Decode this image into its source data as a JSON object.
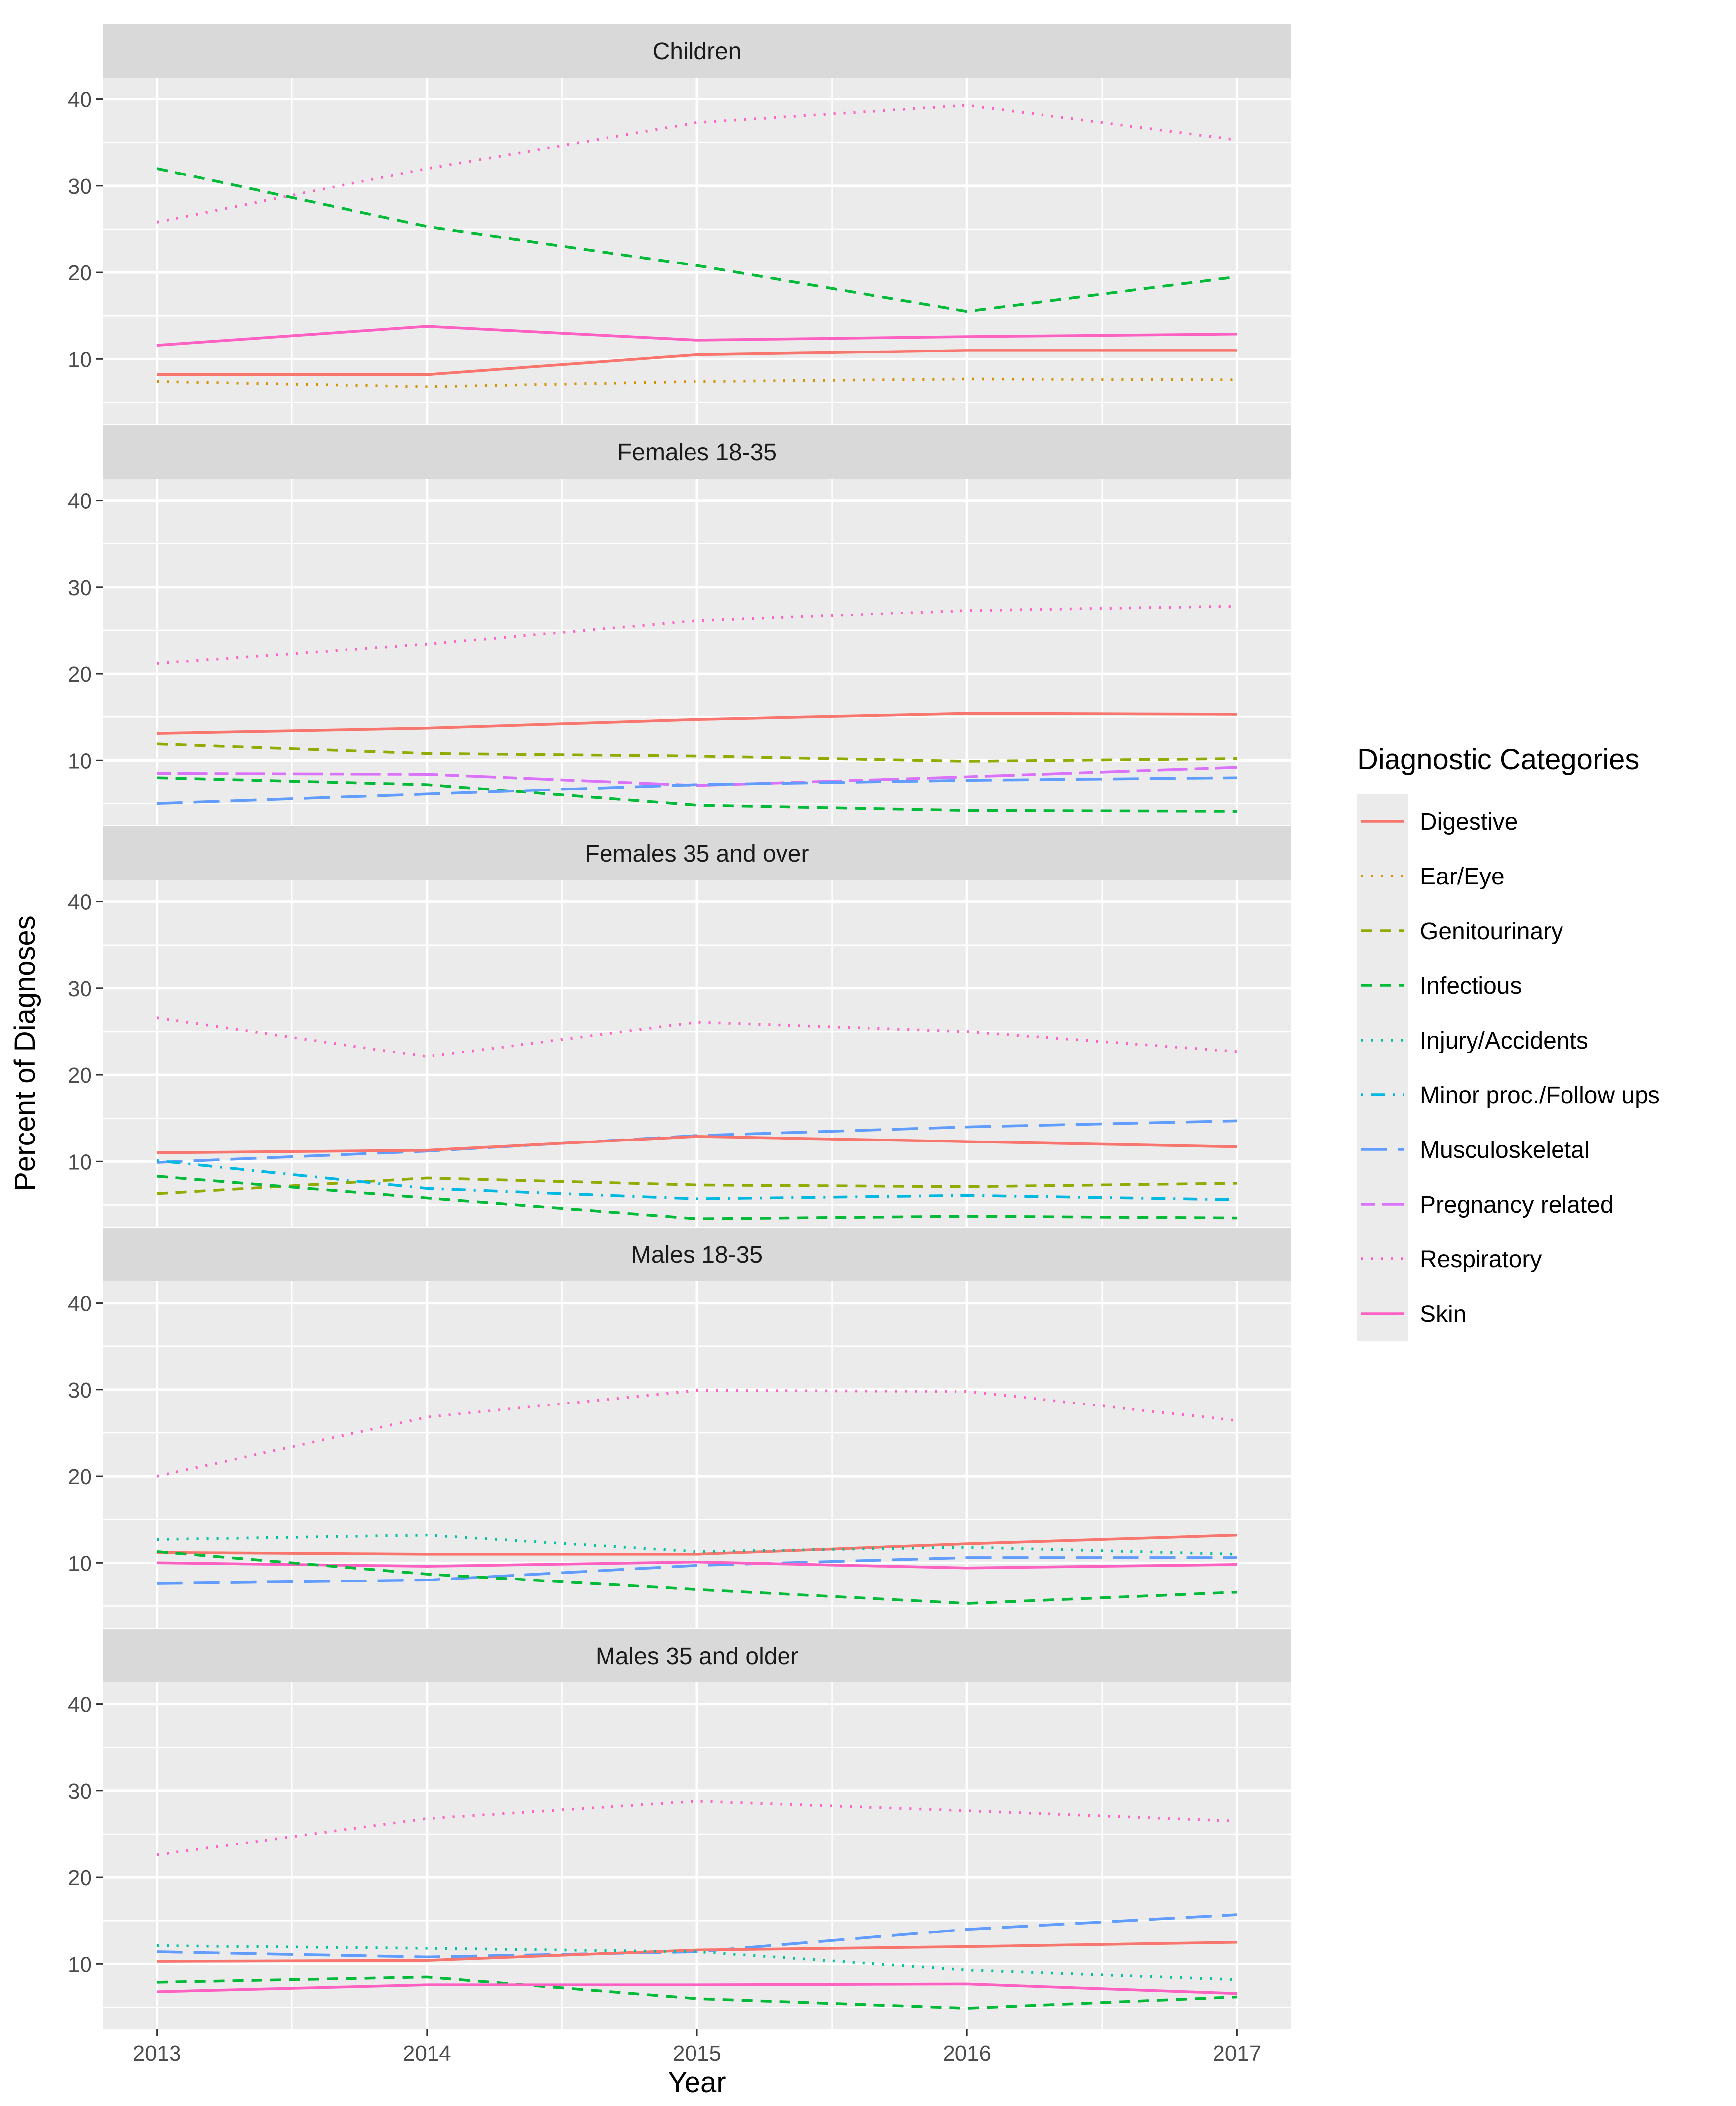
{
  "chart_data": {
    "type": "line",
    "xlabel": "Year",
    "ylabel": "Percent of Diagnoses",
    "x": [
      2013,
      2014,
      2015,
      2016,
      2017
    ],
    "ylim": [
      2.5,
      42.5
    ],
    "y_ticks": [
      10,
      20,
      30,
      40
    ],
    "grid": true,
    "legend": {
      "title": "Diagnostic Categories",
      "position": "right",
      "entries": [
        {
          "name": "Digestive",
          "color": "#F8766D",
          "dash": "solid"
        },
        {
          "name": "Ear/Eye",
          "color": "#D39200",
          "dash": "dotted"
        },
        {
          "name": "Genitourinary",
          "color": "#93AA00",
          "dash": "dashed"
        },
        {
          "name": "Infectious",
          "color": "#00BA38",
          "dash": "dashed"
        },
        {
          "name": "Injury/Accidents",
          "color": "#00C19F",
          "dash": "dotted"
        },
        {
          "name": "Minor proc./Follow ups",
          "color": "#00B9E3",
          "dash": "dotdash"
        },
        {
          "name": "Musculoskeletal",
          "color": "#619CFF",
          "dash": "longdash"
        },
        {
          "name": "Pregnancy related",
          "color": "#DB72FB",
          "dash": "twodash"
        },
        {
          "name": "Respiratory",
          "color": "#FF61C3",
          "dash": "dotted"
        },
        {
          "name": "Skin",
          "color": "#FF61C3",
          "dash": "solid"
        }
      ]
    },
    "panels": [
      {
        "title": "Children",
        "series": [
          {
            "name": "Respiratory",
            "values": [
              25.8,
              32.0,
              37.3,
              39.3,
              35.3
            ]
          },
          {
            "name": "Infectious",
            "values": [
              32.0,
              25.3,
              20.8,
              15.5,
              19.5
            ]
          },
          {
            "name": "Skin",
            "values": [
              11.6,
              13.8,
              12.2,
              12.6,
              12.9
            ]
          },
          {
            "name": "Digestive",
            "values": [
              8.2,
              8.2,
              10.5,
              11.0,
              11.0
            ]
          },
          {
            "name": "Ear/Eye",
            "values": [
              7.4,
              6.8,
              7.4,
              7.7,
              7.6
            ]
          }
        ]
      },
      {
        "title": "Females 18-35",
        "series": [
          {
            "name": "Respiratory",
            "values": [
              21.2,
              23.4,
              26.1,
              27.3,
              27.8
            ]
          },
          {
            "name": "Digestive",
            "values": [
              13.1,
              13.7,
              14.7,
              15.4,
              15.3
            ]
          },
          {
            "name": "Genitourinary",
            "values": [
              11.9,
              10.8,
              10.5,
              9.9,
              10.2
            ]
          },
          {
            "name": "Pregnancy related",
            "values": [
              8.5,
              8.4,
              7.1,
              8.1,
              9.2
            ]
          },
          {
            "name": "Infectious",
            "values": [
              8.0,
              7.2,
              4.8,
              4.2,
              4.1
            ]
          },
          {
            "name": "Musculoskeletal",
            "values": [
              5.0,
              6.1,
              7.2,
              7.7,
              8.0
            ]
          }
        ]
      },
      {
        "title": "Females 35 and over",
        "series": [
          {
            "name": "Respiratory",
            "values": [
              26.6,
              22.1,
              26.1,
              25.0,
              22.7
            ]
          },
          {
            "name": "Musculoskeletal",
            "values": [
              9.9,
              11.2,
              13.0,
              14.0,
              14.7
            ]
          },
          {
            "name": "Digestive",
            "values": [
              11.0,
              11.3,
              12.9,
              12.3,
              11.7
            ]
          },
          {
            "name": "Genitourinary",
            "values": [
              6.3,
              8.1,
              7.3,
              7.1,
              7.5
            ]
          },
          {
            "name": "Minor proc./Follow ups",
            "values": [
              10.1,
              6.9,
              5.7,
              6.1,
              5.6
            ]
          },
          {
            "name": "Infectious",
            "values": [
              8.3,
              5.8,
              3.4,
              3.7,
              3.5
            ]
          }
        ]
      },
      {
        "title": "Males 18-35",
        "series": [
          {
            "name": "Respiratory",
            "values": [
              20.0,
              26.8,
              29.9,
              29.8,
              26.4
            ]
          },
          {
            "name": "Digestive",
            "values": [
              11.2,
              11.0,
              11.0,
              12.2,
              13.2
            ]
          },
          {
            "name": "Injury/Accidents",
            "values": [
              12.7,
              13.2,
              11.3,
              11.8,
              11.0
            ]
          },
          {
            "name": "Musculoskeletal",
            "values": [
              7.6,
              8.0,
              9.7,
              10.6,
              10.6
            ]
          },
          {
            "name": "Skin",
            "values": [
              10.0,
              9.6,
              10.1,
              9.4,
              9.8
            ]
          },
          {
            "name": "Infectious",
            "values": [
              11.3,
              8.7,
              6.9,
              5.3,
              6.6
            ]
          }
        ]
      },
      {
        "title": "Males 35 and older",
        "series": [
          {
            "name": "Respiratory",
            "values": [
              22.6,
              26.8,
              28.8,
              27.7,
              26.5
            ]
          },
          {
            "name": "Musculoskeletal",
            "values": [
              11.4,
              10.8,
              11.4,
              14.0,
              15.7
            ]
          },
          {
            "name": "Digestive",
            "values": [
              10.3,
              10.4,
              11.6,
              12.0,
              12.5
            ]
          },
          {
            "name": "Injury/Accidents",
            "values": [
              12.1,
              11.8,
              11.4,
              9.3,
              8.2
            ]
          },
          {
            "name": "Infectious",
            "values": [
              7.9,
              8.5,
              6.0,
              4.9,
              6.2
            ]
          },
          {
            "name": "Skin",
            "values": [
              6.8,
              7.6,
              7.6,
              7.7,
              6.6
            ]
          }
        ]
      }
    ]
  }
}
